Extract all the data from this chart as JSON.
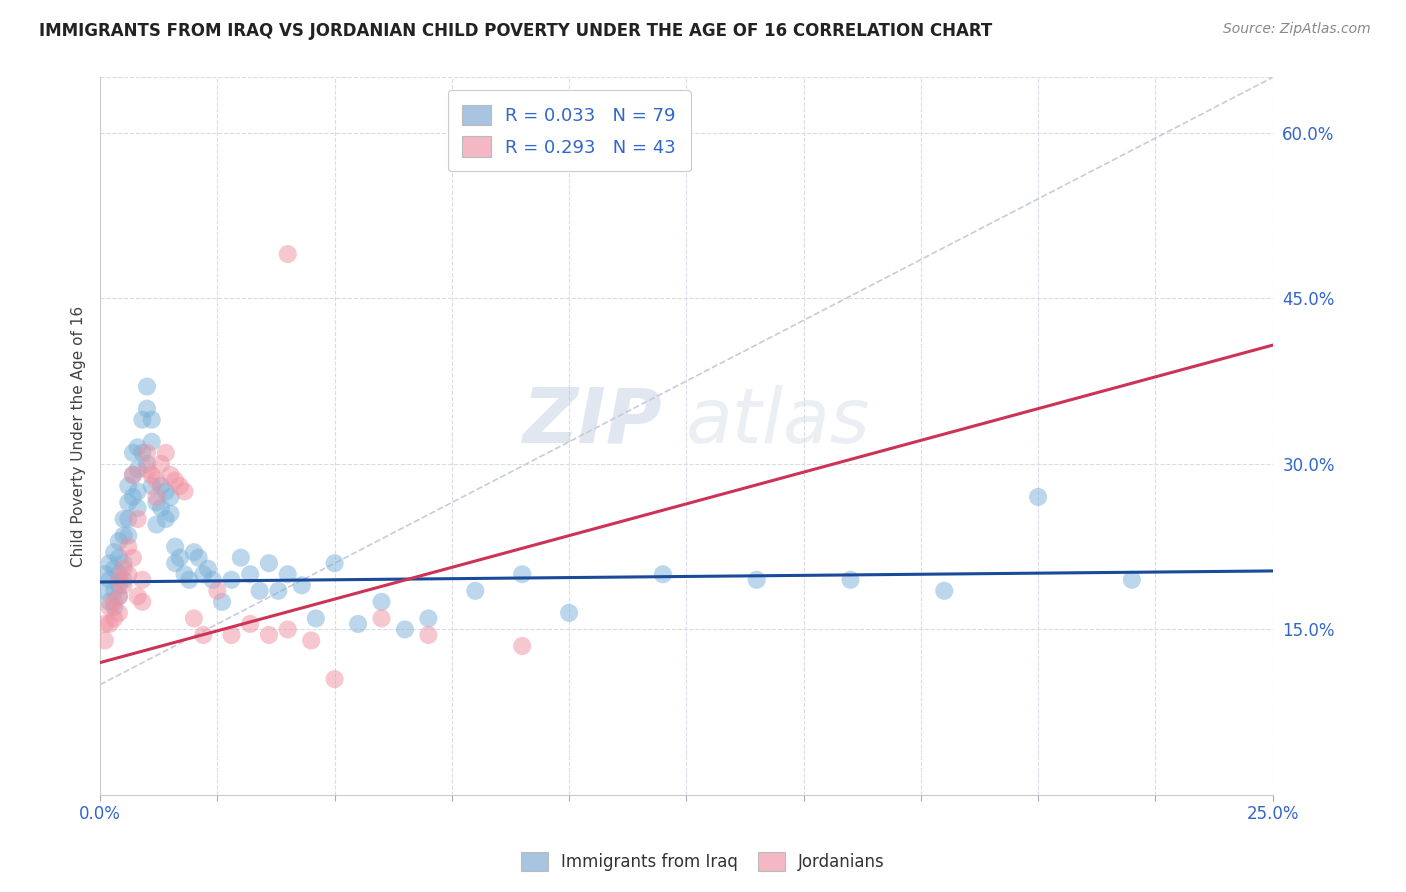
{
  "title": "IMMIGRANTS FROM IRAQ VS JORDANIAN CHILD POVERTY UNDER THE AGE OF 16 CORRELATION CHART",
  "source": "Source: ZipAtlas.com",
  "ylabel": "Child Poverty Under the Age of 16",
  "xlim": [
    0.0,
    0.25
  ],
  "ylim": [
    0.0,
    0.65
  ],
  "xticks": [
    0.0,
    0.025,
    0.05,
    0.075,
    0.1,
    0.125,
    0.15,
    0.175,
    0.2,
    0.225,
    0.25
  ],
  "xtick_labels_show": [
    "0.0%",
    "25.0%"
  ],
  "xtick_show_positions": [
    0.0,
    0.25
  ],
  "ytick_labels_right": [
    "15.0%",
    "30.0%",
    "45.0%",
    "60.0%"
  ],
  "yticks_right": [
    0.15,
    0.3,
    0.45,
    0.6
  ],
  "legend1_label": "R = 0.033   N = 79",
  "legend2_label": "R = 0.293   N = 43",
  "legend_color1": "#a8c4e0",
  "legend_color2": "#f4b8c4",
  "scatter_color_iraq": "#7ab0d8",
  "scatter_color_jordan": "#f090a0",
  "trendline_color_iraq": "#1a4a9a",
  "trendline_color_jordan": "#cc3355",
  "trendline_dashed_color": "#c8ccd8",
  "grid_color": "#d8dce8",
  "watermark": "ZIPatlas",
  "iraq_x": [
    0.001,
    0.001,
    0.002,
    0.002,
    0.002,
    0.003,
    0.003,
    0.003,
    0.003,
    0.004,
    0.004,
    0.004,
    0.004,
    0.004,
    0.005,
    0.005,
    0.005,
    0.005,
    0.006,
    0.006,
    0.006,
    0.006,
    0.007,
    0.007,
    0.007,
    0.008,
    0.008,
    0.008,
    0.008,
    0.009,
    0.009,
    0.01,
    0.01,
    0.01,
    0.011,
    0.011,
    0.011,
    0.012,
    0.012,
    0.013,
    0.013,
    0.014,
    0.014,
    0.015,
    0.015,
    0.016,
    0.016,
    0.017,
    0.018,
    0.019,
    0.02,
    0.021,
    0.022,
    0.023,
    0.024,
    0.026,
    0.028,
    0.03,
    0.032,
    0.034,
    0.036,
    0.038,
    0.04,
    0.043,
    0.046,
    0.05,
    0.055,
    0.06,
    0.065,
    0.07,
    0.08,
    0.09,
    0.1,
    0.12,
    0.14,
    0.16,
    0.18,
    0.2,
    0.22
  ],
  "iraq_y": [
    0.2,
    0.185,
    0.21,
    0.195,
    0.175,
    0.22,
    0.205,
    0.185,
    0.17,
    0.23,
    0.215,
    0.2,
    0.19,
    0.18,
    0.25,
    0.235,
    0.21,
    0.195,
    0.28,
    0.265,
    0.25,
    0.235,
    0.31,
    0.29,
    0.27,
    0.315,
    0.295,
    0.275,
    0.26,
    0.34,
    0.31,
    0.37,
    0.35,
    0.3,
    0.34,
    0.32,
    0.28,
    0.265,
    0.245,
    0.28,
    0.26,
    0.275,
    0.25,
    0.27,
    0.255,
    0.225,
    0.21,
    0.215,
    0.2,
    0.195,
    0.22,
    0.215,
    0.2,
    0.205,
    0.195,
    0.175,
    0.195,
    0.215,
    0.2,
    0.185,
    0.21,
    0.185,
    0.2,
    0.19,
    0.16,
    0.21,
    0.155,
    0.175,
    0.15,
    0.16,
    0.185,
    0.2,
    0.165,
    0.2,
    0.195,
    0.195,
    0.185,
    0.27,
    0.195
  ],
  "jordan_x": [
    0.001,
    0.001,
    0.002,
    0.002,
    0.003,
    0.003,
    0.004,
    0.004,
    0.004,
    0.005,
    0.005,
    0.006,
    0.006,
    0.007,
    0.007,
    0.008,
    0.008,
    0.009,
    0.009,
    0.01,
    0.01,
    0.011,
    0.012,
    0.012,
    0.013,
    0.014,
    0.015,
    0.016,
    0.017,
    0.018,
    0.02,
    0.022,
    0.025,
    0.028,
    0.032,
    0.036,
    0.04,
    0.045,
    0.05,
    0.06,
    0.07,
    0.09,
    0.04
  ],
  "jordan_y": [
    0.155,
    0.14,
    0.17,
    0.155,
    0.175,
    0.16,
    0.195,
    0.18,
    0.165,
    0.205,
    0.19,
    0.225,
    0.2,
    0.29,
    0.215,
    0.25,
    0.18,
    0.195,
    0.175,
    0.31,
    0.295,
    0.29,
    0.285,
    0.27,
    0.3,
    0.31,
    0.29,
    0.285,
    0.28,
    0.275,
    0.16,
    0.145,
    0.185,
    0.145,
    0.155,
    0.145,
    0.15,
    0.14,
    0.105,
    0.16,
    0.145,
    0.135,
    0.49
  ]
}
